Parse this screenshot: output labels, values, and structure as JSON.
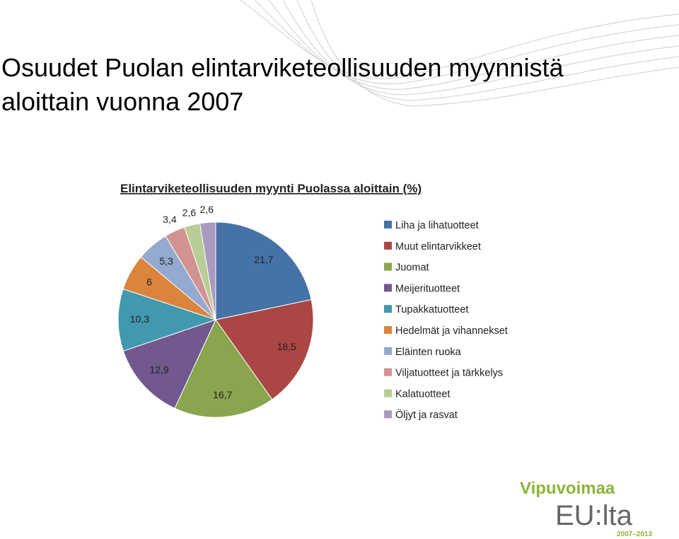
{
  "slide": {
    "title_lines": [
      "Osuudet Puolan elintarviketeollisuuden myynnistä",
      "aloittain vuonna 2007"
    ],
    "logo": {
      "line1": "Vipuvoimaa",
      "line2": "EU:lta",
      "line3": "2007–2013"
    }
  },
  "chart_data": {
    "type": "pie",
    "title": "Elintarviketeollisuuden myynti Puolassa aloittain (%)",
    "categories": [
      "Liha ja lihatuotteet",
      "Muut elintarvikkeet",
      "Juomat",
      "Meijerituotteet",
      "Tupakkatuotteet",
      "Hedelmät ja vihannekset",
      "Eläinten ruoka",
      "Viljatuotteet ja tärkkelys",
      "Kalatuotteet",
      "Öljyt ja rasvat"
    ],
    "values": [
      21.7,
      18.5,
      16.7,
      12.9,
      10.3,
      6,
      5.3,
      3.4,
      2.6,
      2.6
    ],
    "value_labels": [
      "21,7",
      "18,5",
      "16,7",
      "12,9",
      "10,3",
      "6",
      "5,3",
      "3,4",
      "2,6",
      "2,6"
    ],
    "colors": [
      "#4572a7",
      "#aa4643",
      "#89a54e",
      "#71588f",
      "#4198af",
      "#db843d",
      "#93a9cf",
      "#d19392",
      "#b9cd96",
      "#a99bbd"
    ],
    "legend": "right"
  }
}
